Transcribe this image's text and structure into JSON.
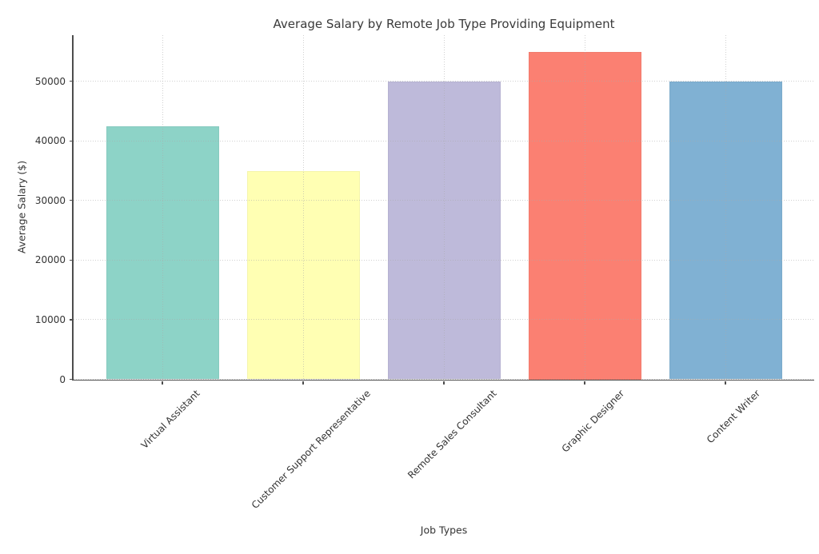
{
  "chart_data": {
    "type": "bar",
    "title": "Average Salary by Remote Job Type Providing Equipment",
    "xlabel": "Job Types",
    "ylabel": "Average Salary ($)",
    "categories": [
      "Virtual Assistant",
      "Customer Support Representative",
      "Remote Sales Consultant",
      "Graphic Designer",
      "Content Writer"
    ],
    "values": [
      42500,
      35000,
      50000,
      55000,
      50000
    ],
    "bar_colors": [
      "#8dd3c7",
      "#ffffb3",
      "#bebada",
      "#fb8072",
      "#80b1d3"
    ],
    "yticks": [
      0,
      10000,
      20000,
      30000,
      40000,
      50000
    ],
    "ytick_labels": [
      "0",
      "10000",
      "20000",
      "30000",
      "40000",
      "50000"
    ],
    "ylim": [
      0,
      57750
    ],
    "grid": {
      "on": true,
      "style": "dotted",
      "color": "#cfcfcf",
      "axes": "both"
    },
    "legend_position": "none",
    "x_tick_rotation_deg": 45,
    "colors": {
      "text": "#3a3a3a",
      "tick_text": "#333333",
      "spine": "#4d4d4d",
      "background": "#ffffff"
    }
  }
}
